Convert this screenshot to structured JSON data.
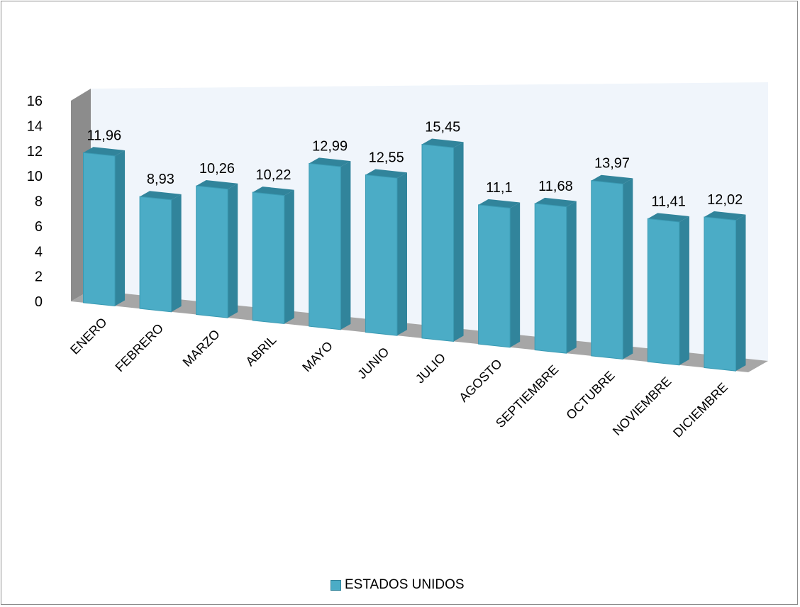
{
  "chart_data": {
    "type": "bar",
    "title": "",
    "xlabel": "",
    "ylabel": "",
    "categories": [
      "ENERO",
      "FEBRERO",
      "MARZO",
      "ABRIL",
      "MAYO",
      "JUNIO",
      "JULIO",
      "AGOSTO",
      "SEPTIEMBRE",
      "OCTUBRE",
      "NOVIEMBRE",
      "DICIEMBRE"
    ],
    "series": [
      {
        "name": "ESTADOS UNIDOS",
        "values": [
          11.96,
          8.93,
          10.26,
          10.22,
          12.99,
          12.55,
          15.45,
          11.1,
          11.68,
          13.97,
          11.41,
          12.02
        ],
        "data_labels": [
          "11,96",
          "8,93",
          "10,26",
          "10,22",
          "12,99",
          "12,55",
          "15,45",
          "11,1",
          "11,68",
          "13,97",
          "11,41",
          "12,02"
        ]
      }
    ],
    "ylim": [
      0,
      16
    ],
    "yticks": [
      "0",
      "2",
      "4",
      "6",
      "8",
      "10",
      "12",
      "14",
      "16"
    ],
    "style": "3d-column",
    "grid": false,
    "legend_position": "bottom",
    "colors": {
      "bar_front": "#4bacc6",
      "bar_side": "#31849b",
      "bar_top": "#7fcfe2",
      "back_wall": "#f0f5fb",
      "floor": "#a6a6a6",
      "left_wall": "#8c8c8c"
    }
  },
  "legend": {
    "label": "ESTADOS UNIDOS"
  }
}
